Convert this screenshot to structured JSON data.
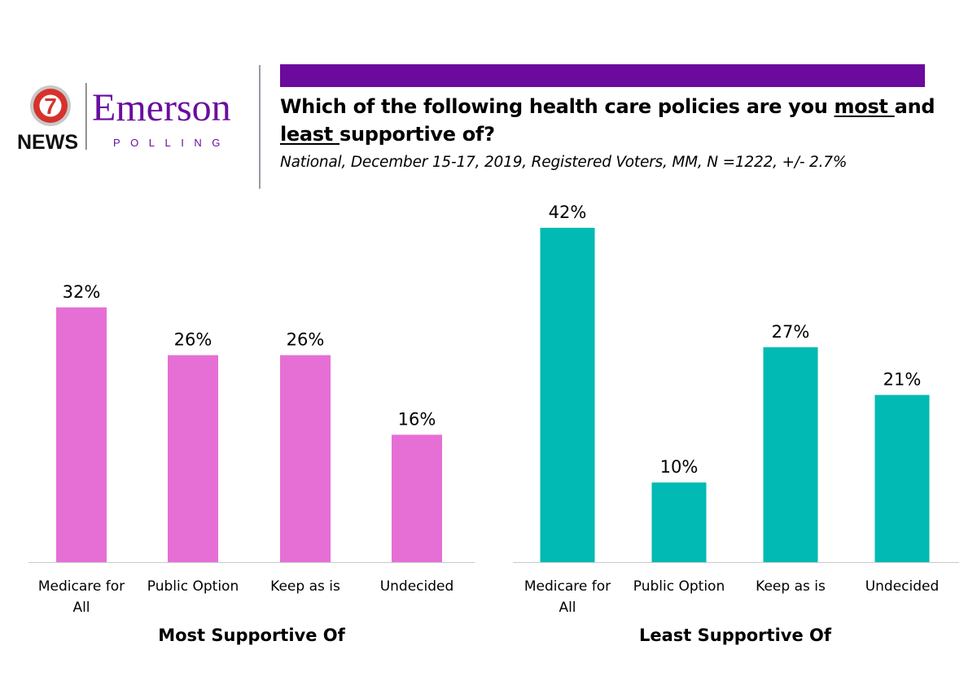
{
  "brand": {
    "news_label": "NEWS",
    "channel_number": "7",
    "name": "Emerson",
    "sub": "POLLING",
    "colors": {
      "purple": "#6a0d9e",
      "red": "#d6322b"
    }
  },
  "header": {
    "bar_color": "#6b0a9c",
    "title_part1": "Which of the following health care policies are you ",
    "title_most": "most ",
    "title_part2": "and",
    "title_least": "least ",
    "title_part3": "supportive of?",
    "subtitle": "National, December 15-17, 2019, Registered Voters, MM, N =1222, +/- 2.7%"
  },
  "chart_data": [
    {
      "type": "bar",
      "title": "Most Supportive Of",
      "categories": [
        "Medicare for All",
        "Public Option",
        "Keep as is",
        "Undecided"
      ],
      "category_lines": [
        [
          "Medicare for",
          "All"
        ],
        [
          "Public Option"
        ],
        [
          "Keep as is"
        ],
        [
          "Undecided"
        ]
      ],
      "values": [
        32,
        26,
        26,
        16
      ],
      "labels": [
        "32%",
        "26%",
        "26%",
        "16%"
      ],
      "color": "#e66fd6",
      "ylim": [
        0,
        42
      ],
      "grid": false,
      "legend": "none"
    },
    {
      "type": "bar",
      "title": "Least Supportive Of",
      "categories": [
        "Medicare for All",
        "Public Option",
        "Keep as is",
        "Undecided"
      ],
      "category_lines": [
        [
          "Medicare for",
          "All"
        ],
        [
          "Public Option"
        ],
        [
          "Keep as is"
        ],
        [
          "Undecided"
        ]
      ],
      "values": [
        42,
        10,
        27,
        21
      ],
      "labels": [
        "42%",
        "10%",
        "27%",
        "21%"
      ],
      "color": "#00bab3",
      "ylim": [
        0,
        42
      ],
      "grid": false,
      "legend": "none"
    }
  ]
}
